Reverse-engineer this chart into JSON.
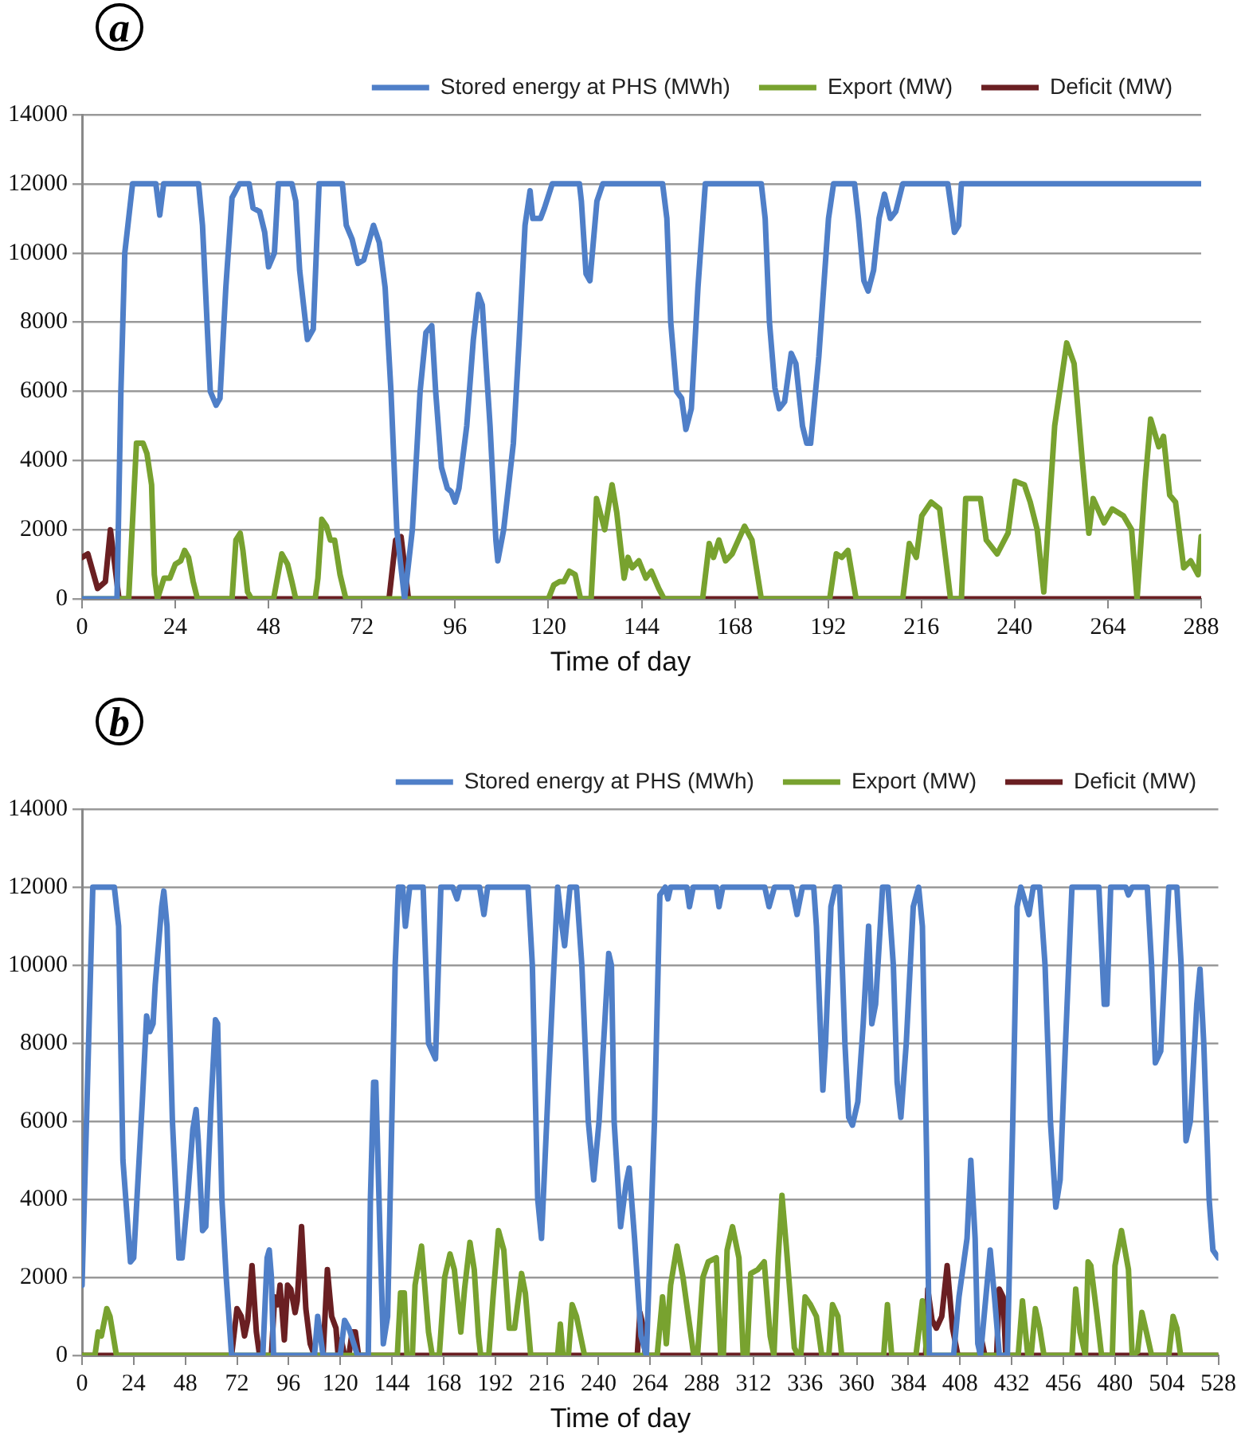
{
  "chart_data": [
    {
      "type": "line",
      "title": "a",
      "xlabel": "Time of day",
      "xlim": [
        0,
        288
      ],
      "xticks": [
        0,
        24,
        48,
        72,
        96,
        120,
        144,
        168,
        192,
        216,
        240,
        264,
        288
      ],
      "ylim": [
        0,
        14000
      ],
      "yticks": [
        0,
        2000,
        4000,
        6000,
        8000,
        10000,
        12000,
        14000
      ],
      "grid": "y",
      "legend": "top",
      "marker": "none",
      "line_style": "solid",
      "series": [
        {
          "name": "Stored energy at PHS (MWh)",
          "color": "#4f7fc8",
          "x": [
            0,
            9,
            10,
            11,
            13,
            19,
            20,
            21,
            30,
            31,
            33,
            34.5,
            35.5,
            37,
            38.6,
            40.5,
            43,
            44,
            45.7,
            47,
            48,
            49.5,
            50.5,
            54,
            55,
            56,
            58,
            59.5,
            61,
            67,
            68,
            69.5,
            71,
            72.5,
            74,
            75,
            76.5,
            78,
            79.5,
            81,
            83,
            85,
            87,
            88.5,
            90,
            91,
            92.5,
            94,
            95,
            96,
            97,
            99,
            100.7,
            102,
            103,
            105,
            106.5,
            107,
            108.5,
            110,
            111,
            112.5,
            114,
            115.3,
            116,
            118,
            119,
            121,
            128,
            128.5,
            129.7,
            130.7,
            132.5,
            134,
            149.4,
            150.5,
            151.5,
            153,
            154.3,
            155.4,
            156.8,
            158.5,
            160.4,
            174.8,
            175.8,
            176.9,
            178.3,
            179.4,
            180.8,
            182.5,
            183.7,
            185.4,
            186.5,
            187.5,
            189.6,
            192.1,
            193.4,
            198.8,
            199.8,
            201.2,
            202.3,
            203.7,
            205.1,
            206.5,
            208,
            209.4,
            211.2,
            222.8,
            223.8,
            224.5,
            225.6,
            226.3,
            288
          ],
          "values": [
            0,
            0,
            6000,
            10000,
            12000,
            12000,
            11100,
            12000,
            12000,
            10800,
            6000,
            5600,
            5800,
            9000,
            11600,
            12000,
            12000,
            11300,
            11200,
            10600,
            9600,
            10000,
            12000,
            12000,
            11500,
            9500,
            7500,
            7800,
            12000,
            12000,
            10800,
            10400,
            9700,
            9800,
            10400,
            10800,
            10300,
            9000,
            6000,
            2000,
            0,
            2000,
            6000,
            7700,
            7900,
            6000,
            3800,
            3200,
            3100,
            2800,
            3200,
            5000,
            7500,
            8800,
            8500,
            5000,
            1700,
            1100,
            2000,
            3500,
            4500,
            7500,
            10800,
            11800,
            11000,
            11000,
            11300,
            12000,
            12000,
            11500,
            9400,
            9200,
            11500,
            12000,
            12000,
            11000,
            8000,
            6000,
            5800,
            4900,
            5500,
            9000,
            12000,
            12000,
            11000,
            8000,
            6100,
            5500,
            5700,
            7100,
            6800,
            5000,
            4500,
            4500,
            7000,
            11000,
            12000,
            12000,
            11000,
            9200,
            8900,
            9500,
            11000,
            11700,
            11000,
            11200,
            12000,
            12000,
            11200,
            10600,
            10800,
            12000,
            12000
          ]
        },
        {
          "name": "Export (MW)",
          "color": "#78a22f",
          "x": [
            0,
            12,
            14,
            15.7,
            16.7,
            17.9,
            18.6,
            19.4,
            21.1,
            22.6,
            24,
            25.4,
            26.4,
            27.4,
            28.6,
            29.7,
            38.6,
            39.6,
            40.7,
            41.4,
            42.6,
            43.6,
            49.3,
            51.4,
            52.9,
            54,
            55,
            60,
            60.7,
            61.7,
            62.9,
            63.9,
            65,
            66.4,
            67.9,
            120,
            121.4,
            122.9,
            124,
            125.4,
            126.9,
            128.3,
            131,
            132.4,
            134.5,
            136.4,
            137.6,
            139.5,
            140.5,
            141.6,
            143.3,
            145.1,
            146.5,
            148.4,
            149.8,
            159.7,
            161.4,
            162.5,
            163.9,
            165.6,
            167.3,
            170.5,
            172.4,
            174.8,
            192.4,
            194.1,
            195.5,
            197.1,
            199.2,
            211.2,
            212.9,
            214.7,
            216.1,
            218.5,
            220.7,
            223.5,
            226.3,
            227.4,
            231.2,
            232.7,
            235.5,
            238.3,
            240.1,
            242.5,
            244,
            245.8,
            247.5,
            250.3,
            253.4,
            255.3,
            257.4,
            259.1,
            260.2,
            263,
            265.1,
            268,
            270.1,
            271.5,
            273.6,
            275,
            277.1,
            278.3,
            279.9,
            281.4,
            283.5,
            285.3,
            287.2,
            288
          ],
          "values": [
            0,
            0,
            4500,
            4500,
            4200,
            3300,
            700,
            0,
            600,
            600,
            1000,
            1100,
            1400,
            1200,
            500,
            0,
            0,
            1700,
            1900,
            1400,
            200,
            0,
            0,
            1300,
            1000,
            500,
            0,
            0,
            600,
            2300,
            2100,
            1700,
            1700,
            700,
            0,
            0,
            400,
            500,
            500,
            800,
            700,
            0,
            0,
            2900,
            2000,
            3300,
            2500,
            600,
            1200,
            900,
            1100,
            600,
            800,
            300,
            0,
            0,
            1600,
            1200,
            1700,
            1100,
            1300,
            2100,
            1700,
            0,
            0,
            1300,
            1200,
            1400,
            0,
            0,
            1600,
            1200,
            2400,
            2800,
            2600,
            0,
            0,
            2900,
            2900,
            1700,
            1300,
            1900,
            3400,
            3300,
            2800,
            2000,
            200,
            5000,
            7400,
            6800,
            4000,
            1900,
            2900,
            2200,
            2600,
            2400,
            2000,
            0,
            3400,
            5200,
            4400,
            4700,
            3000,
            2800,
            900,
            1100,
            700,
            1800
          ]
        },
        {
          "name": "Deficit (MW)",
          "color": "#6a1f22",
          "x": [
            0,
            1.5,
            4,
            6,
            7.3,
            9.5,
            79,
            80.7,
            82.1,
            84,
            288
          ],
          "values": [
            1200,
            1300,
            300,
            500,
            2000,
            0,
            0,
            1700,
            1800,
            0,
            0
          ]
        }
      ]
    },
    {
      "type": "line",
      "title": "b",
      "xlabel": "Time of day",
      "xlim": [
        0,
        528
      ],
      "xticks": [
        0,
        24,
        48,
        72,
        96,
        120,
        144,
        168,
        192,
        216,
        240,
        264,
        288,
        312,
        336,
        360,
        384,
        408,
        432,
        456,
        480,
        504,
        528
      ],
      "ylim": [
        0,
        14000
      ],
      "yticks": [
        0,
        2000,
        4000,
        6000,
        8000,
        10000,
        12000,
        14000
      ],
      "grid": "y",
      "legend": "top",
      "marker": "none",
      "line_style": "solid",
      "series": [
        {
          "name": "Stored energy at PHS (MWh)",
          "color": "#4f7fc8",
          "x": [
            0,
            5,
            15,
            17,
            19,
            22.5,
            24,
            28,
            30,
            31.5,
            33,
            34,
            37,
            38,
            39.5,
            42,
            45,
            46.5,
            49,
            51.5,
            53,
            54,
            56,
            57.5,
            60,
            62,
            63,
            65,
            67,
            69.5,
            84,
            86,
            87,
            88,
            89,
            108,
            109.5,
            112,
            120,
            122,
            124,
            128,
            133,
            134,
            135.5,
            136.5,
            138.5,
            140,
            142,
            145.5,
            147,
            149,
            150.25,
            152.25,
            158.5,
            161,
            164.25,
            166.75,
            172.25,
            174.25,
            175.5,
            184.75,
            186.75,
            188.5,
            207.25,
            209.25,
            211.75,
            213.5,
            216.75,
            221,
            223,
            224.25,
            226.75,
            229.75,
            232.25,
            235.25,
            237.75,
            240.25,
            244.75,
            246,
            247.25,
            250.25,
            252.75,
            254.25,
            256.75,
            259.75,
            262.25,
            266,
            268.5,
            271,
            272.25,
            273.5,
            281,
            282.25,
            284,
            294.75,
            296,
            297.75,
            317.25,
            319.25,
            321.75,
            329.75,
            332.25,
            334.75,
            340,
            341.25,
            344.25,
            345.5,
            348,
            350,
            352,
            354.5,
            356.25,
            358,
            360.5,
            363,
            365.5,
            367,
            368.75,
            372,
            374.5,
            377,
            378.75,
            380.5,
            383,
            386.25,
            388.75,
            390.5,
            392.5,
            393.75,
            405,
            407.5,
            411.25,
            413,
            415,
            416.25,
            417.5,
            420,
            422,
            424,
            426.25,
            430,
            432.5,
            434.5,
            436.25,
            440,
            442,
            445,
            447.5,
            450,
            452.5,
            454.5,
            457,
            460,
            472.5,
            475,
            476.25,
            478,
            485,
            486.25,
            488,
            495,
            497,
            498.75,
            501.25,
            505,
            508.75,
            510.75,
            513,
            515,
            518,
            519.5,
            521.25,
            523.75,
            525.5,
            528
          ],
          "values": [
            1800,
            12000,
            12000,
            11000,
            5000,
            2400,
            2500,
            6500,
            8700,
            8300,
            8500,
            9500,
            11500,
            11900,
            11000,
            6000,
            2500,
            2500,
            4000,
            5800,
            6300,
            5500,
            3200,
            3300,
            6500,
            8600,
            8500,
            4000,
            2000,
            0,
            0,
            2500,
            2700,
            2000,
            0,
            0,
            1000,
            0,
            0,
            900,
            700,
            0,
            0,
            4000,
            7000,
            7000,
            3000,
            300,
            1000,
            10000,
            12000,
            12000,
            11000,
            12000,
            12000,
            8000,
            7600,
            12000,
            12000,
            11700,
            12000,
            12000,
            11300,
            12000,
            12000,
            10000,
            4000,
            3000,
            7000,
            12000,
            11000,
            10500,
            12000,
            12000,
            10000,
            6000,
            4500,
            6000,
            10300,
            10000,
            6000,
            3300,
            4400,
            4800,
            3000,
            500,
            0,
            6000,
            11800,
            12000,
            11700,
            12000,
            12000,
            11500,
            12000,
            12000,
            11500,
            12000,
            12000,
            11500,
            12000,
            12000,
            11300,
            12000,
            12000,
            11000,
            6800,
            8000,
            11500,
            12000,
            12000,
            8000,
            6100,
            5900,
            6500,
            8500,
            11000,
            8500,
            9000,
            12000,
            12000,
            10000,
            7000,
            6100,
            8000,
            11500,
            12000,
            11000,
            5000,
            0,
            0,
            1500,
            3000,
            5000,
            3000,
            300,
            0,
            1500,
            2700,
            1500,
            0,
            0,
            6000,
            11500,
            12000,
            11300,
            12000,
            12000,
            10000,
            6000,
            3800,
            4500,
            8000,
            12000,
            12000,
            9000,
            9000,
            12000,
            12000,
            11800,
            12000,
            12000,
            10000,
            7500,
            7800,
            12000,
            12000,
            10000,
            5500,
            6000,
            9000,
            9900,
            8000,
            4000,
            2700,
            2500
          ]
        },
        {
          "name": "Export (MW)",
          "color": "#78a22f",
          "x": [
            0,
            6,
            7.5,
            9,
            11.5,
            13,
            16,
            146.5,
            148,
            149.75,
            151,
            153.5,
            154.75,
            157.75,
            161,
            162.75,
            166,
            168.5,
            171,
            173,
            176,
            177.75,
            180.25,
            182.25,
            184.25,
            185.25,
            189,
            191,
            193.5,
            196,
            198.5,
            201,
            204.25,
            206,
            208.5,
            221,
            222.25,
            223.5,
            226,
            227.75,
            229.75,
            233.5,
            267.25,
            269.75,
            271.5,
            273.5,
            276.5,
            279.25,
            282.25,
            284.25,
            286,
            288.5,
            291,
            294.75,
            296.75,
            298,
            299.75,
            302.25,
            305.25,
            307.25,
            309,
            310.75,
            314,
            317,
            319.75,
            321.5,
            323.5,
            325.25,
            327.25,
            331,
            332.75,
            334,
            336,
            338.5,
            341.25,
            343.75,
            347,
            348.75,
            351.25,
            353,
            372.5,
            374.25,
            376.25,
            387.5,
            390.5,
            392.5,
            435,
            437,
            439.5,
            441,
            443,
            445,
            447,
            460,
            461.75,
            463.75,
            466.25,
            467.5,
            468.75,
            471.25,
            473.75,
            478.75,
            480,
            483,
            486.25,
            488,
            490.5,
            492.5,
            495,
            497,
            505,
            507,
            508.75,
            510.5,
            528
          ],
          "values": [
            0,
            0,
            600,
            500,
            1200,
            1000,
            0,
            0,
            1600,
            1600,
            0,
            0,
            1800,
            2800,
            600,
            0,
            0,
            2000,
            2600,
            2200,
            600,
            1700,
            2900,
            2200,
            500,
            0,
            0,
            1500,
            3200,
            2700,
            700,
            700,
            2100,
            1600,
            0,
            0,
            800,
            0,
            0,
            1300,
            1000,
            0,
            0,
            1500,
            300,
            1800,
            2800,
            2000,
            800,
            0,
            0,
            2000,
            2400,
            2500,
            0,
            0,
            2700,
            3300,
            2500,
            0,
            0,
            2100,
            2200,
            2400,
            500,
            0,
            2500,
            4100,
            2800,
            200,
            0,
            0,
            1500,
            1300,
            1000,
            0,
            0,
            1300,
            1000,
            0,
            0,
            1300,
            0,
            0,
            1400,
            0,
            0,
            1400,
            0,
            0,
            1200,
            700,
            0,
            0,
            1700,
            600,
            0,
            2400,
            2300,
            1200,
            0,
            0,
            2300,
            3200,
            2200,
            0,
            100,
            1100,
            500,
            0,
            0,
            1000,
            700,
            0,
            0
          ]
        },
        {
          "name": "Deficit (MW)",
          "color": "#6a1f22",
          "x": [
            0,
            69.5,
            72,
            74,
            75.5,
            77,
            79,
            81,
            82.5,
            88,
            89.5,
            91,
            92,
            94,
            95.5,
            97,
            99,
            100,
            102,
            104,
            106,
            108,
            112,
            114,
            116,
            118,
            119,
            120.5,
            122,
            124,
            125.5,
            127,
            128.5,
            258,
            259.25,
            260.5,
            261.75,
            392,
            393,
            395,
            397,
            399.5,
            402,
            404.5,
            407,
            417,
            418,
            419.5,
            425,
            426.25,
            428,
            429.25,
            528
          ],
          "values": [
            0,
            0,
            1200,
            1000,
            500,
            900,
            2300,
            600,
            0,
            0,
            1500,
            1300,
            1800,
            400,
            1800,
            1700,
            1100,
            1400,
            3300,
            1200,
            300,
            0,
            0,
            2200,
            1000,
            700,
            0,
            400,
            0,
            0,
            600,
            600,
            0,
            0,
            1100,
            800,
            0,
            0,
            1700,
            900,
            700,
            1000,
            2300,
            700,
            0,
            0,
            400,
            0,
            0,
            1700,
            1500,
            0,
            0
          ]
        }
      ]
    }
  ]
}
